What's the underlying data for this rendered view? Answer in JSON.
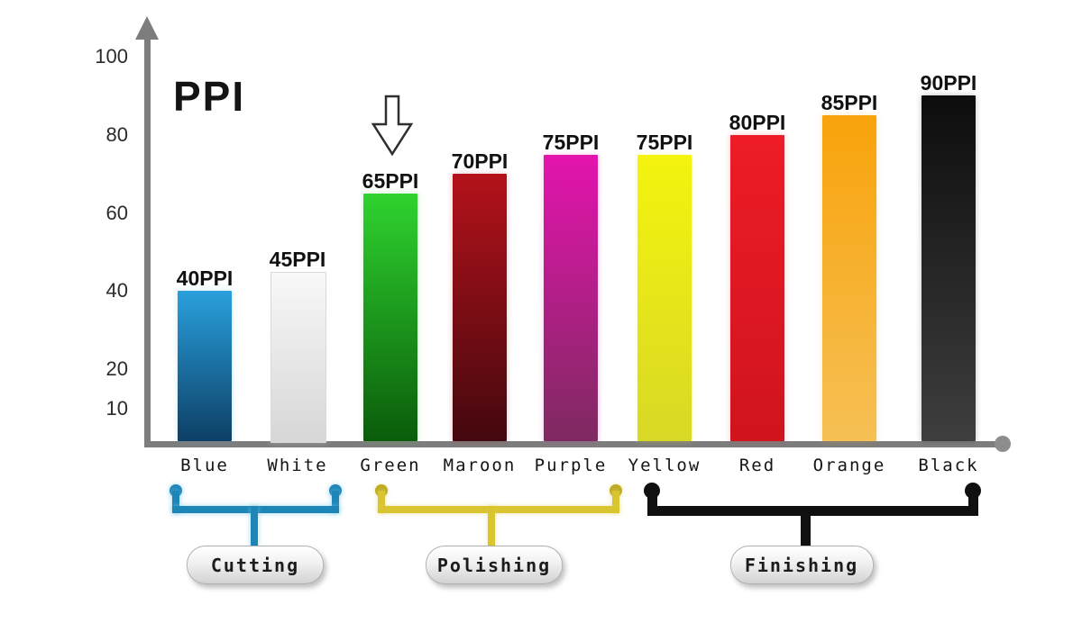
{
  "title": "PPI",
  "chart_data": {
    "type": "bar",
    "title": "PPI",
    "xlabel": "",
    "ylabel": "",
    "ylim": [
      0,
      110
    ],
    "yticks": [
      100,
      80,
      60,
      40,
      20,
      10
    ],
    "grid": false,
    "legend": false,
    "categories": [
      "Blue",
      "White",
      "Green",
      "Maroon",
      "Purple",
      "Yellow",
      "Red",
      "Orange",
      "Black"
    ],
    "values": [
      40,
      45,
      65,
      70,
      75,
      75,
      80,
      85,
      90
    ],
    "bar_labels": [
      "40PPI",
      "45PPI",
      "65PPI",
      "70PPI",
      "75PPI",
      "75PPI",
      "80PPI",
      "85PPI",
      "90PPI"
    ],
    "bar_colors": [
      {
        "top": "#29a0dc",
        "bottom": "#0d3f66",
        "border": ""
      },
      {
        "top": "#f8f8f8",
        "bottom": "#d7d7d7",
        "border": "#d9d9d9"
      },
      {
        "top": "#2fd32f",
        "bottom": "#0a5c0a",
        "border": ""
      },
      {
        "top": "#b5121b",
        "bottom": "#43080e",
        "border": ""
      },
      {
        "top": "#e414ae",
        "bottom": "#7e2a60",
        "border": ""
      },
      {
        "top": "#f4f40e",
        "bottom": "#d8d826",
        "border": ""
      },
      {
        "top": "#ee1c26",
        "bottom": "#cf141e",
        "border": ""
      },
      {
        "top": "#f8a30b",
        "bottom": "#f6c055",
        "border": ""
      },
      {
        "top": "#0d0d0d",
        "bottom": "#3e3e3e",
        "border": ""
      }
    ],
    "annotations": [
      {
        "type": "down-arrow",
        "target": "Green"
      }
    ],
    "groups": [
      {
        "label": "Cutting",
        "members": [
          "Blue",
          "White"
        ],
        "color": "#1e86b6",
        "dot_color": "#1e86b6"
      },
      {
        "label": "Polishing",
        "members": [
          "Green",
          "Maroon",
          "Purple"
        ],
        "color": "#d8c52f",
        "dot_color": "#bfab24"
      },
      {
        "label": "Finishing",
        "members": [
          "Yellow",
          "Red",
          "Orange",
          "Black"
        ],
        "color": "#101010",
        "dot_color": "#101010"
      }
    ],
    "axis_color": "#7d7d7d"
  }
}
